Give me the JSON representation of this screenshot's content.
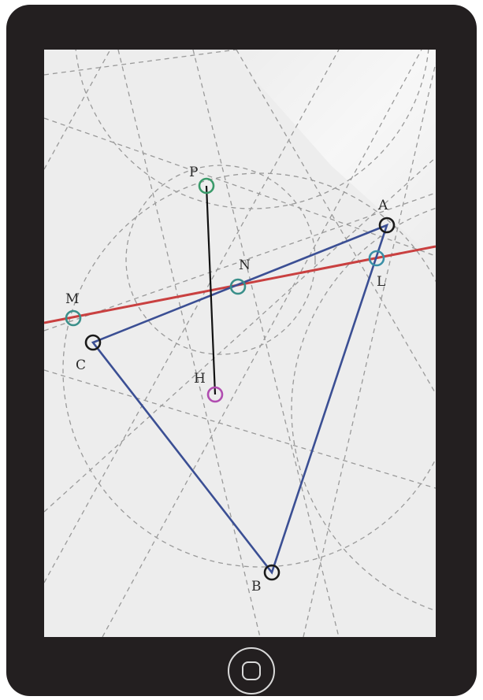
{
  "diagram": {
    "points": {
      "A": {
        "label": "A",
        "color": "#1a1a1a"
      },
      "B": {
        "label": "B",
        "color": "#1a1a1a"
      },
      "C": {
        "label": "C",
        "color": "#1a1a1a"
      },
      "P": {
        "label": "P",
        "color": "#3a9a6a"
      },
      "N": {
        "label": "N",
        "color": "#3a8f8a"
      },
      "M": {
        "label": "M",
        "color": "#3a8f8a"
      },
      "L": {
        "label": "L",
        "color": "#3a8fa6"
      },
      "H": {
        "label": "H",
        "color": "#b04cb0"
      }
    },
    "colors": {
      "triangle": "#3b4f94",
      "line_mn": "#c94040",
      "segment_ph": "#111111",
      "construction": "#9a9a9a",
      "screen": "#ededed",
      "device": "#231f20"
    }
  },
  "device": {
    "home_button_icon": "home-button-icon"
  }
}
